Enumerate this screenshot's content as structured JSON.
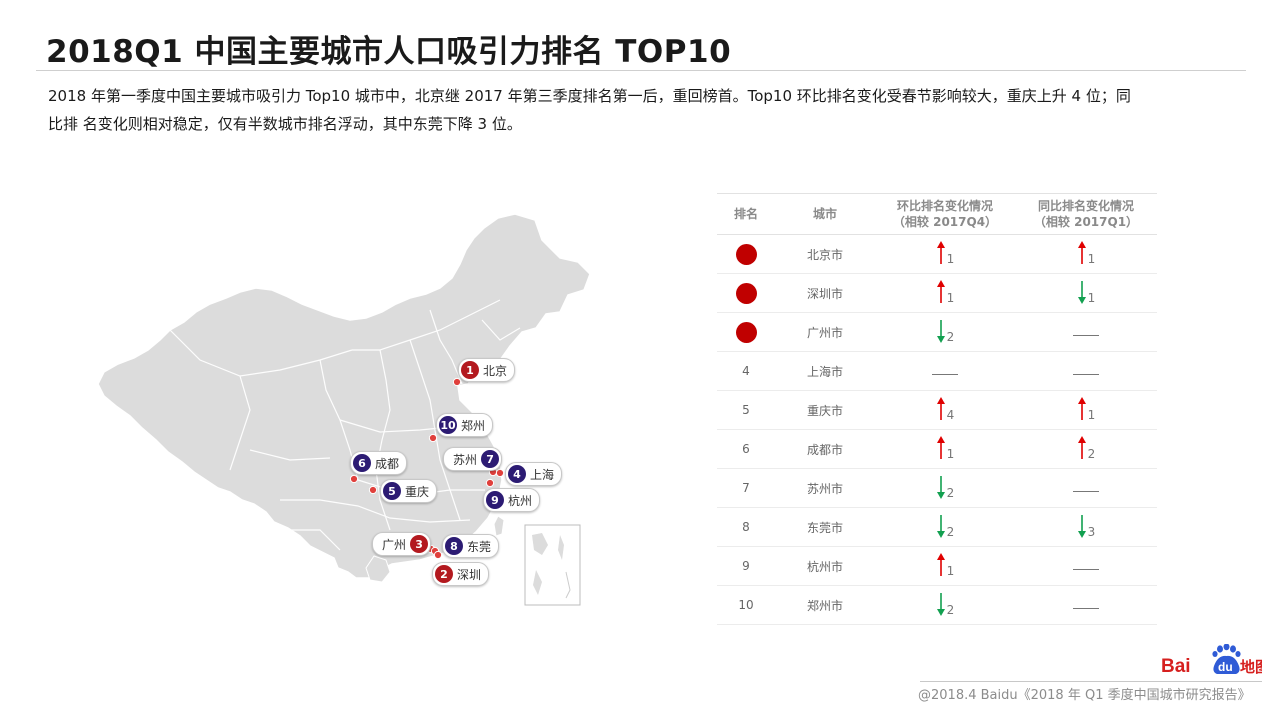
{
  "header": {
    "title": "2018Q1 中国主要城市人口吸引力排名 TOP10",
    "summary_line1": "2018 年第一季度中国主要城市吸引力 Top10 城市中，北京继 2017 年第三季度排名第一后，重回榜首。Top10 环比排名变化受春节影响较大，重庆上升 4 位；同",
    "summary_line2": "比排 名变化则相对稳定，仅有半数城市排名浮动，其中东莞下降 3 位。"
  },
  "map": {
    "pins": [
      {
        "num": "1",
        "city": "北京",
        "color": "#b3191f"
      },
      {
        "num": "10",
        "city": "郑州",
        "color": "#2c1b73"
      },
      {
        "num": "6",
        "city": "成都",
        "color": "#2c1b73"
      },
      {
        "num": "5",
        "city": "重庆",
        "color": "#2c1b73"
      },
      {
        "num": "7",
        "city": "苏州",
        "color": "#2c1b73"
      },
      {
        "num": "4",
        "city": "上海",
        "color": "#2c1b73"
      },
      {
        "num": "9",
        "city": "杭州",
        "color": "#2c1b73"
      },
      {
        "num": "3",
        "city": "广州",
        "color": "#b3191f"
      },
      {
        "num": "8",
        "city": "东莞",
        "color": "#2c1b73"
      },
      {
        "num": "2",
        "city": "深圳",
        "color": "#b3191f"
      }
    ]
  },
  "table": {
    "headers": {
      "rank": "排名",
      "city": "城市",
      "qoq_line1": "环比排名变化情况",
      "qoq_line2": "（相较 2017Q4）",
      "yoy_line1": "同比排名变化情况",
      "yoy_line2": "（相较 2017Q1）"
    },
    "rows": [
      {
        "rank": "",
        "top3": true,
        "city": "北京市",
        "qoq": {
          "dir": "up",
          "val": "1"
        },
        "yoy": {
          "dir": "up",
          "val": "1"
        }
      },
      {
        "rank": "",
        "top3": true,
        "city": "深圳市",
        "qoq": {
          "dir": "up",
          "val": "1"
        },
        "yoy": {
          "dir": "down",
          "val": "1"
        }
      },
      {
        "rank": "",
        "top3": true,
        "city": "广州市",
        "qoq": {
          "dir": "down",
          "val": "2"
        },
        "yoy": {
          "dir": "none",
          "val": ""
        }
      },
      {
        "rank": "4",
        "top3": false,
        "city": "上海市",
        "qoq": {
          "dir": "none",
          "val": ""
        },
        "yoy": {
          "dir": "none",
          "val": ""
        }
      },
      {
        "rank": "5",
        "top3": false,
        "city": "重庆市",
        "qoq": {
          "dir": "up",
          "val": "4"
        },
        "yoy": {
          "dir": "up",
          "val": "1"
        }
      },
      {
        "rank": "6",
        "top3": false,
        "city": "成都市",
        "qoq": {
          "dir": "up",
          "val": "1"
        },
        "yoy": {
          "dir": "up",
          "val": "2"
        }
      },
      {
        "rank": "7",
        "top3": false,
        "city": "苏州市",
        "qoq": {
          "dir": "down",
          "val": "2"
        },
        "yoy": {
          "dir": "none",
          "val": ""
        }
      },
      {
        "rank": "8",
        "top3": false,
        "city": "东莞市",
        "qoq": {
          "dir": "down",
          "val": "2"
        },
        "yoy": {
          "dir": "down",
          "val": "3"
        }
      },
      {
        "rank": "9",
        "top3": false,
        "city": "杭州市",
        "qoq": {
          "dir": "up",
          "val": "1"
        },
        "yoy": {
          "dir": "none",
          "val": ""
        }
      },
      {
        "rank": "10",
        "top3": false,
        "city": "郑州市",
        "qoq": {
          "dir": "down",
          "val": "2"
        },
        "yoy": {
          "dir": "none",
          "val": ""
        }
      }
    ]
  },
  "colors": {
    "up": "#e00000",
    "down": "#12a050",
    "top3_dot": "#c00000"
  },
  "logo": {
    "brand": "Baidu",
    "word_a": "Bai",
    "word_b": "du",
    "word_c": "地图"
  },
  "footer": {
    "text": "@2018.4 Baidu《2018 年 Q1 季度中国城市研究报告》"
  }
}
